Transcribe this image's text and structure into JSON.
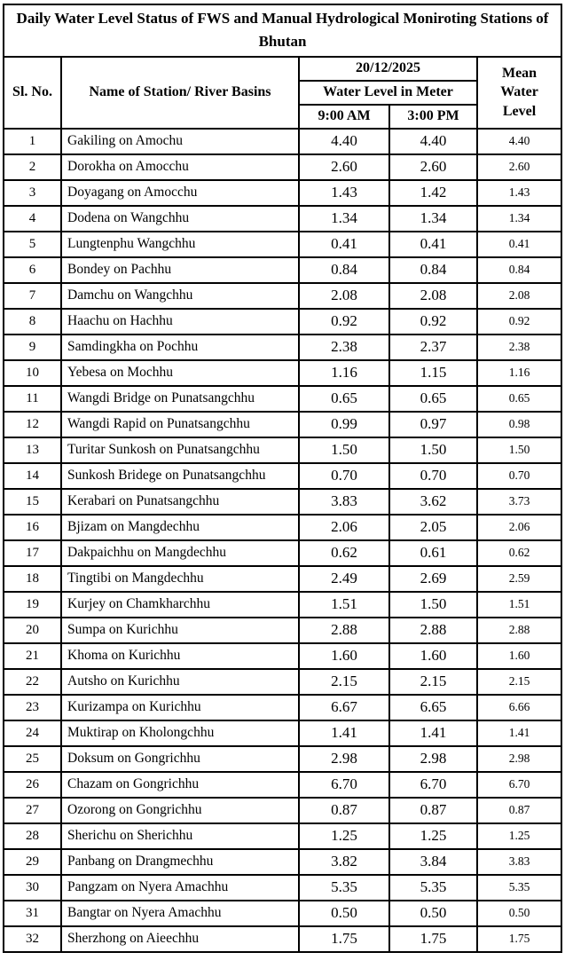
{
  "title": "Daily Water Level Status of FWS and Manual Hydrological Moniroting Stations of Bhutan",
  "header": {
    "sl_no": "Sl. No.",
    "station": "Name of Station/ River Basins",
    "date": "20/12/2025",
    "water_level_unit": "Water Level in Meter",
    "time_am": "9:00 AM",
    "time_pm": "3:00 PM",
    "mean": "Mean Water Level"
  },
  "chart_data": {
    "type": "table",
    "title": "Daily Water Level Status of FWS and Manual Hydrological Moniroting Stations of Bhutan",
    "date": "20/12/2025",
    "columns": [
      "Sl. No.",
      "Name of Station/ River Basins",
      "9:00 AM",
      "3:00 PM",
      "Mean Water Level"
    ],
    "unit": "Water Level in Meter"
  },
  "rows": [
    {
      "sl": "1",
      "station": "Gakiling on Amochu",
      "am": "4.40",
      "pm": "4.40",
      "mean": "4.40"
    },
    {
      "sl": "2",
      "station": "Dorokha on Amocchu",
      "am": "2.60",
      "pm": "2.60",
      "mean": "2.60"
    },
    {
      "sl": "3",
      "station": "Doyagang on Amocchu",
      "am": "1.43",
      "pm": "1.42",
      "mean": "1.43"
    },
    {
      "sl": "4",
      "station": "Dodena on Wangchhu",
      "am": "1.34",
      "pm": "1.34",
      "mean": "1.34"
    },
    {
      "sl": "5",
      "station": "Lungtenphu Wangchhu",
      "am": "0.41",
      "pm": "0.41",
      "mean": "0.41"
    },
    {
      "sl": "6",
      "station": "Bondey on Pachhu",
      "am": "0.84",
      "pm": "0.84",
      "mean": "0.84"
    },
    {
      "sl": "7",
      "station": "Damchu on Wangchhu",
      "am": "2.08",
      "pm": "2.08",
      "mean": "2.08"
    },
    {
      "sl": "8",
      "station": "Haachu on Hachhu",
      "am": "0.92",
      "pm": "0.92",
      "mean": "0.92"
    },
    {
      "sl": "9",
      "station": "Samdingkha on Pochhu",
      "am": "2.38",
      "pm": "2.37",
      "mean": "2.38"
    },
    {
      "sl": "10",
      "station": "Yebesa on Mochhu",
      "am": "1.16",
      "pm": "1.15",
      "mean": "1.16"
    },
    {
      "sl": "11",
      "station": "Wangdi Bridge on Punatsangchhu",
      "am": "0.65",
      "pm": "0.65",
      "mean": "0.65"
    },
    {
      "sl": "12",
      "station": "Wangdi Rapid on Punatsangchhu",
      "am": "0.99",
      "pm": "0.97",
      "mean": "0.98"
    },
    {
      "sl": "13",
      "station": "Turitar Sunkosh on Punatsangchhu",
      "am": "1.50",
      "pm": "1.50",
      "mean": "1.50"
    },
    {
      "sl": "14",
      "station": "Sunkosh Bridege on Punatsangchhu",
      "am": "0.70",
      "pm": "0.70",
      "mean": "0.70"
    },
    {
      "sl": "15",
      "station": "Kerabari on Punatsangchhu",
      "am": "3.83",
      "pm": "3.62",
      "mean": "3.73"
    },
    {
      "sl": "16",
      "station": "Bjizam on Mangdechhu",
      "am": "2.06",
      "pm": "2.05",
      "mean": "2.06"
    },
    {
      "sl": "17",
      "station": "Dakpaichhu on Mangdechhu",
      "am": "0.62",
      "pm": "0.61",
      "mean": "0.62"
    },
    {
      "sl": "18",
      "station": "Tingtibi on Mangdechhu",
      "am": "2.49",
      "pm": "2.69",
      "mean": "2.59"
    },
    {
      "sl": "19",
      "station": "Kurjey on Chamkharchhu",
      "am": "1.51",
      "pm": "1.50",
      "mean": "1.51"
    },
    {
      "sl": "20",
      "station": "Sumpa on Kurichhu",
      "am": "2.88",
      "pm": "2.88",
      "mean": "2.88"
    },
    {
      "sl": "21",
      "station": "Khoma on Kurichhu",
      "am": "1.60",
      "pm": "1.60",
      "mean": "1.60"
    },
    {
      "sl": "22",
      "station": "Autsho on Kurichhu",
      "am": "2.15",
      "pm": "2.15",
      "mean": "2.15"
    },
    {
      "sl": "23",
      "station": "Kurizampa on Kurichhu",
      "am": "6.67",
      "pm": "6.65",
      "mean": "6.66"
    },
    {
      "sl": "24",
      "station": "Muktirap on Kholongchhu",
      "am": "1.41",
      "pm": "1.41",
      "mean": "1.41"
    },
    {
      "sl": "25",
      "station": "Doksum on Gongrichhu",
      "am": "2.98",
      "pm": "2.98",
      "mean": "2.98"
    },
    {
      "sl": "26",
      "station": "Chazam on Gongrichhu",
      "am": "6.70",
      "pm": "6.70",
      "mean": "6.70"
    },
    {
      "sl": "27",
      "station": "Ozorong on Gongrichhu",
      "am": "0.87",
      "pm": "0.87",
      "mean": "0.87"
    },
    {
      "sl": "28",
      "station": "Sherichu on Sherichhu",
      "am": "1.25",
      "pm": "1.25",
      "mean": "1.25"
    },
    {
      "sl": "29",
      "station": "Panbang on Drangmechhu",
      "am": "3.82",
      "pm": "3.84",
      "mean": "3.83"
    },
    {
      "sl": "30",
      "station": "Pangzam on Nyera Amachhu",
      "am": "5.35",
      "pm": "5.35",
      "mean": "5.35"
    },
    {
      "sl": "31",
      "station": "Bangtar on Nyera Amachhu",
      "am": "0.50",
      "pm": "0.50",
      "mean": "0.50"
    },
    {
      "sl": "32",
      "station": "Sherzhong on Aieechhu",
      "am": "1.75",
      "pm": "1.75",
      "mean": "1.75"
    }
  ],
  "colors": {
    "border": "#000000",
    "text": "#000000",
    "background": "#ffffff"
  }
}
